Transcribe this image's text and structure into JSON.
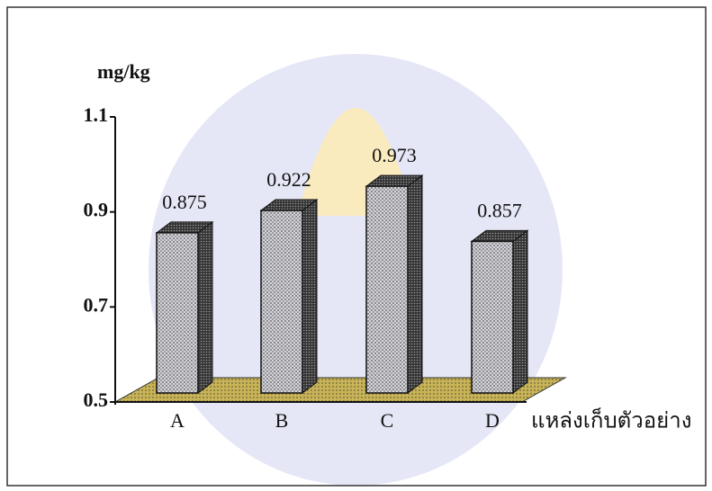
{
  "chart_data": {
    "type": "bar3d",
    "ylabel": "mg/kg",
    "xlabel": "แหล่งเก็บตัวอย่าง",
    "categories": [
      "A",
      "B",
      "C",
      "D"
    ],
    "values": [
      0.875,
      0.922,
      0.973,
      0.857
    ],
    "ylim": [
      0.5,
      1.1
    ],
    "yticks": [
      0.5,
      0.7,
      0.9,
      1.1
    ]
  }
}
